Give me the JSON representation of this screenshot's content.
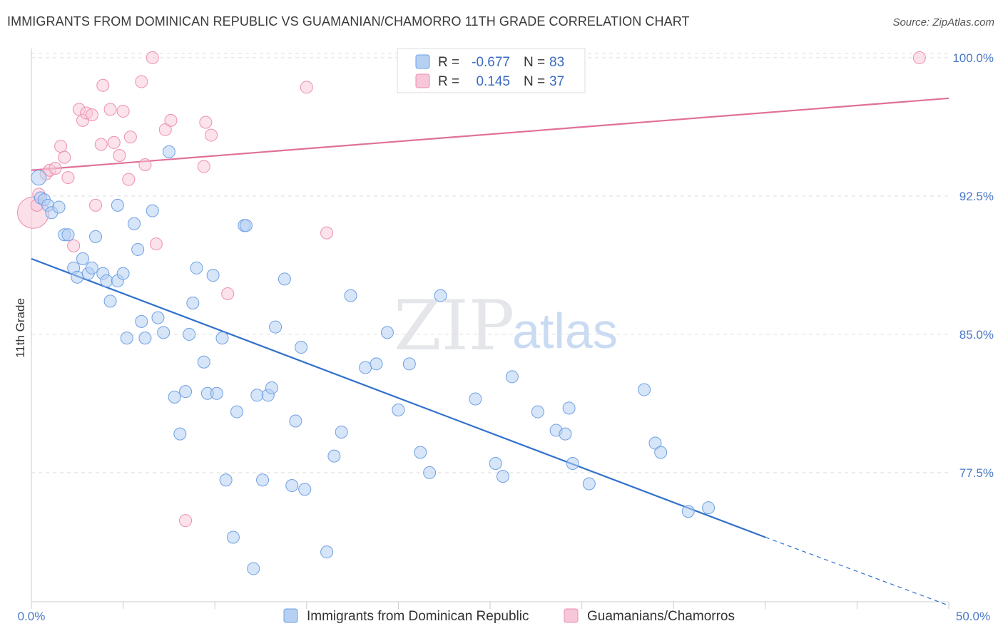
{
  "title": "IMMIGRANTS FROM DOMINICAN REPUBLIC VS GUAMANIAN/CHAMORRO 11TH GRADE CORRELATION CHART",
  "source": "Source: ZipAtlas.com",
  "watermark": {
    "zip": "ZIP",
    "atlas": "atlas"
  },
  "colors": {
    "blue": "#6fa0e4",
    "blue_fill": "#b5d0f3",
    "blue_line": "#3070cc",
    "pink": "#ee8fb0",
    "pink_fill": "#f7c6d8",
    "pink_line": "#e0709a",
    "tick_text": "#4a78c6",
    "grid": "#dddddd"
  },
  "legend": {
    "rows": [
      {
        "r_label": "R =",
        "r_value": "-0.677",
        "n_label": "N =",
        "n_value": "83",
        "series": "blue"
      },
      {
        "r_label": "R =",
        "r_value": "0.145",
        "n_label": "N =",
        "n_value": "37",
        "series": "pink"
      }
    ]
  },
  "chart_data": {
    "type": "scatter",
    "title": "IMMIGRANTS FROM DOMINICAN REPUBLIC VS GUAMANIAN/CHAMORRO 11TH GRADE CORRELATION CHART",
    "xlabel": "",
    "ylabel": "11th Grade",
    "xlim": [
      0,
      50
    ],
    "ylim": [
      70.5,
      100.5
    ],
    "x_tick_labels": [
      "0.0%",
      "50.0%"
    ],
    "y_ticks": [
      100,
      92.5,
      85,
      77.5
    ],
    "y_tick_labels": [
      "100.0%",
      "92.5%",
      "85.0%",
      "77.5%"
    ],
    "grid": true,
    "series": [
      {
        "name": "Immigrants from Dominican Republic",
        "color": "blue",
        "trend": {
          "x": [
            0,
            40
          ],
          "y": [
            89.1,
            74.0
          ],
          "dashed_to": [
            50,
            70.3
          ]
        },
        "points": [
          [
            0.4,
            93.5
          ],
          [
            0.5,
            92.4
          ],
          [
            0.7,
            92.3
          ],
          [
            0.9,
            92.0
          ],
          [
            1.1,
            91.6
          ],
          [
            1.5,
            91.9
          ],
          [
            1.8,
            90.4
          ],
          [
            2.0,
            90.4
          ],
          [
            2.3,
            88.6
          ],
          [
            2.5,
            88.1
          ],
          [
            2.8,
            89.1
          ],
          [
            3.1,
            88.3
          ],
          [
            3.3,
            88.6
          ],
          [
            3.5,
            90.3
          ],
          [
            3.9,
            88.3
          ],
          [
            4.1,
            87.9
          ],
          [
            4.3,
            86.8
          ],
          [
            4.7,
            87.9
          ],
          [
            4.7,
            92.0
          ],
          [
            5.0,
            88.3
          ],
          [
            5.2,
            84.8
          ],
          [
            5.6,
            91.0
          ],
          [
            5.8,
            89.6
          ],
          [
            6.0,
            85.7
          ],
          [
            6.2,
            84.8
          ],
          [
            6.6,
            91.7
          ],
          [
            6.9,
            85.9
          ],
          [
            7.2,
            85.1
          ],
          [
            7.5,
            94.9
          ],
          [
            7.8,
            81.6
          ],
          [
            8.1,
            79.6
          ],
          [
            8.4,
            81.9
          ],
          [
            8.6,
            85.0
          ],
          [
            8.8,
            86.7
          ],
          [
            9.0,
            88.6
          ],
          [
            9.4,
            83.5
          ],
          [
            9.6,
            81.8
          ],
          [
            9.9,
            88.2
          ],
          [
            10.1,
            81.8
          ],
          [
            10.4,
            84.8
          ],
          [
            10.6,
            77.1
          ],
          [
            11.0,
            74.0
          ],
          [
            11.2,
            80.8
          ],
          [
            11.6,
            90.9
          ],
          [
            11.7,
            90.9
          ],
          [
            12.1,
            72.3
          ],
          [
            12.3,
            81.7
          ],
          [
            12.6,
            77.1
          ],
          [
            12.9,
            81.7
          ],
          [
            13.1,
            82.1
          ],
          [
            13.3,
            85.4
          ],
          [
            13.8,
            88.0
          ],
          [
            14.2,
            76.8
          ],
          [
            14.4,
            80.3
          ],
          [
            14.7,
            84.3
          ],
          [
            14.9,
            76.6
          ],
          [
            16.1,
            73.2
          ],
          [
            16.5,
            78.4
          ],
          [
            16.9,
            79.7
          ],
          [
            17.4,
            87.1
          ],
          [
            18.2,
            83.2
          ],
          [
            18.8,
            83.4
          ],
          [
            19.4,
            85.1
          ],
          [
            20.0,
            80.9
          ],
          [
            20.6,
            83.4
          ],
          [
            21.2,
            78.6
          ],
          [
            21.7,
            77.5
          ],
          [
            22.3,
            87.1
          ],
          [
            24.2,
            81.5
          ],
          [
            25.3,
            78.0
          ],
          [
            25.7,
            77.3
          ],
          [
            26.2,
            82.7
          ],
          [
            27.6,
            80.8
          ],
          [
            28.6,
            79.8
          ],
          [
            29.1,
            79.6
          ],
          [
            29.3,
            81.0
          ],
          [
            29.5,
            78.0
          ],
          [
            30.4,
            76.9
          ],
          [
            33.4,
            82.0
          ],
          [
            34.0,
            79.1
          ],
          [
            34.3,
            78.6
          ],
          [
            35.8,
            75.4
          ],
          [
            36.9,
            75.6
          ]
        ]
      },
      {
        "name": "Guamanians/Chamorros",
        "color": "pink",
        "trend": {
          "x": [
            0,
            50
          ],
          "y": [
            93.9,
            97.8
          ]
        },
        "points": [
          [
            0.3,
            92.0
          ],
          [
            0.4,
            92.6
          ],
          [
            0.8,
            93.7
          ],
          [
            1.0,
            93.9
          ],
          [
            1.3,
            94.0
          ],
          [
            1.6,
            95.2
          ],
          [
            1.8,
            94.6
          ],
          [
            2.0,
            93.5
          ],
          [
            2.3,
            89.8
          ],
          [
            2.6,
            97.2
          ],
          [
            2.8,
            96.6
          ],
          [
            3.0,
            97.0
          ],
          [
            3.3,
            96.9
          ],
          [
            3.5,
            92.0
          ],
          [
            3.8,
            95.3
          ],
          [
            3.9,
            98.5
          ],
          [
            4.3,
            97.2
          ],
          [
            4.5,
            95.4
          ],
          [
            4.8,
            94.7
          ],
          [
            5.0,
            97.1
          ],
          [
            5.3,
            93.4
          ],
          [
            5.4,
            95.7
          ],
          [
            6.0,
            98.7
          ],
          [
            6.2,
            94.2
          ],
          [
            6.6,
            100.0
          ],
          [
            6.8,
            89.9
          ],
          [
            7.3,
            96.1
          ],
          [
            7.6,
            96.6
          ],
          [
            8.4,
            74.9
          ],
          [
            9.4,
            94.1
          ],
          [
            9.5,
            96.5
          ],
          [
            9.8,
            95.8
          ],
          [
            10.7,
            87.2
          ],
          [
            15.0,
            98.4
          ],
          [
            16.1,
            90.5
          ],
          [
            48.4,
            100.0
          ]
        ],
        "large_point": [
          0.1,
          91.6
        ]
      }
    ]
  },
  "bottom_legend": {
    "items": [
      {
        "label": "Immigrants from Dominican Republic",
        "series": "blue"
      },
      {
        "label": "Guamanians/Chamorros",
        "series": "pink"
      }
    ]
  }
}
